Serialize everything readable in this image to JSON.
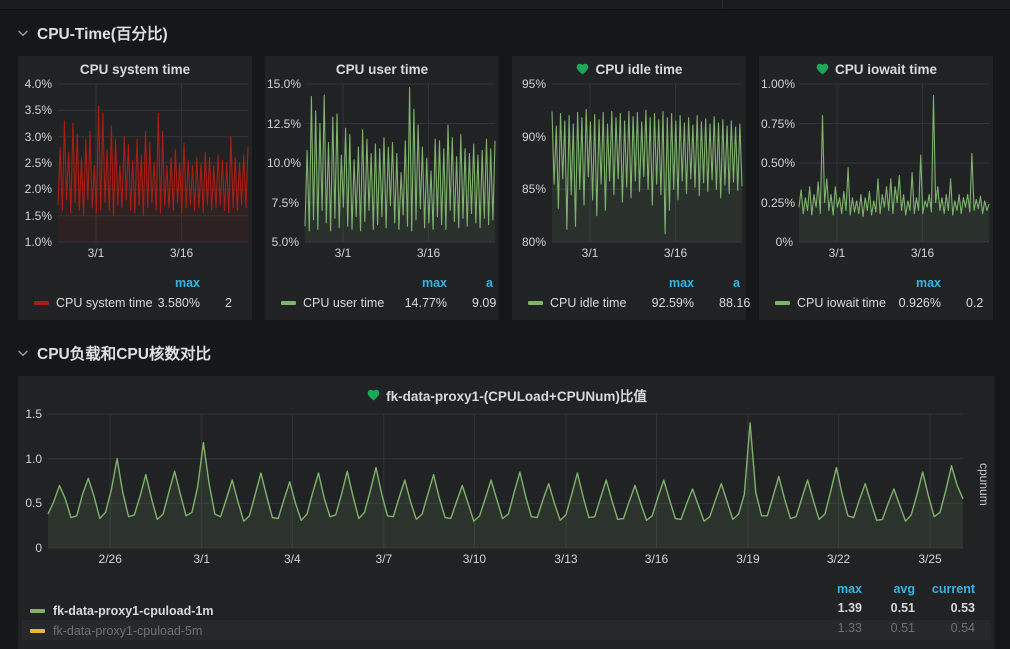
{
  "sections": [
    {
      "title": "CPU-Time(百分比)"
    },
    {
      "title": "CPU负载和CPU核数对比"
    }
  ],
  "colors": {
    "red": "#ab1d12",
    "green": "#7eb26d",
    "yellow": "#eab839",
    "stat_header_blue": "#33b5e5",
    "heart_green": "#18a957"
  },
  "chart_data": [
    {
      "type": "line",
      "title": "CPU system time",
      "heart": false,
      "color": "#ab1d12",
      "fill": "rgba(171,29,18,0.10)",
      "ylim": [
        1.0,
        4.0
      ],
      "yticks": [
        {
          "v": 4.0,
          "label": "4.0%"
        },
        {
          "v": 3.5,
          "label": "3.5%"
        },
        {
          "v": 3.0,
          "label": "3.0%"
        },
        {
          "v": 2.5,
          "label": "2.5%"
        },
        {
          "v": 2.0,
          "label": "2.0%"
        },
        {
          "v": 1.5,
          "label": "1.5%"
        },
        {
          "v": 1.0,
          "label": "1.0%"
        }
      ],
      "xticks": [
        {
          "f": 0.2,
          "label": "3/1"
        },
        {
          "f": 0.65,
          "label": "3/16"
        }
      ],
      "values": [
        1.7,
        2.8,
        1.6,
        3.3,
        1.8,
        2.7,
        1.55,
        3.25,
        1.75,
        3.05,
        1.6,
        2.6,
        1.5,
        2.95,
        1.8,
        3.1,
        1.65,
        2.45,
        1.55,
        3.58,
        1.6,
        3.45,
        1.75,
        2.75,
        1.6,
        3.2,
        1.5,
        2.95,
        1.7,
        2.45,
        1.65,
        3.0,
        1.8,
        2.85,
        1.6,
        2.55,
        1.55,
        2.95,
        1.7,
        2.65,
        1.5,
        3.1,
        1.65,
        2.9,
        1.75,
        2.5,
        1.6,
        3.44,
        1.55,
        3.1,
        1.7,
        2.45,
        1.65,
        2.6,
        1.6,
        2.75,
        1.75,
        2.5,
        1.55,
        2.88,
        1.65,
        2.55,
        1.7,
        2.45,
        1.6,
        2.6,
        1.65,
        2.5,
        1.55,
        2.7,
        1.7,
        2.6,
        1.6,
        2.45,
        1.65,
        2.65,
        1.7,
        2.55,
        1.6,
        2.5,
        1.55,
        3.0,
        1.65,
        2.6,
        1.6,
        2.5,
        1.7,
        2.65,
        1.65,
        2.8
      ],
      "legend": {
        "series": "CPU system time",
        "max_header": "max",
        "max": "3.580%",
        "avg_header_partial": "",
        "avg_partial": "2"
      }
    },
    {
      "type": "line",
      "title": "CPU user time",
      "heart": false,
      "color": "#7eb26d",
      "fill": "rgba(126,178,109,0.10)",
      "ylim": [
        5.0,
        15.0
      ],
      "yticks": [
        {
          "v": 15.0,
          "label": "15.0%"
        },
        {
          "v": 12.5,
          "label": "12.5%"
        },
        {
          "v": 10.0,
          "label": "10.0%"
        },
        {
          "v": 7.5,
          "label": "7.5%"
        },
        {
          "v": 5.0,
          "label": "5.0%"
        }
      ],
      "xticks": [
        {
          "f": 0.2,
          "label": "3/1"
        },
        {
          "f": 0.65,
          "label": "3/16"
        }
      ],
      "values": [
        6.0,
        10.8,
        5.7,
        14.2,
        6.4,
        13.3,
        5.8,
        12.5,
        7.0,
        14.3,
        6.2,
        11.3,
        5.7,
        12.9,
        6.5,
        13.1,
        5.9,
        10.5,
        7.2,
        12.2,
        6.0,
        11.8,
        5.8,
        10.2,
        6.6,
        11.0,
        5.7,
        12.1,
        6.3,
        11.5,
        7.0,
        10.6,
        5.8,
        11.2,
        6.1,
        10.9,
        6.6,
        11.6,
        5.9,
        11.0,
        7.3,
        11.3,
        6.2,
        10.6,
        5.8,
        9.4,
        6.7,
        11.4,
        6.0,
        14.77,
        5.7,
        13.4,
        6.4,
        12.4,
        7.1,
        11.0,
        5.9,
        10.3,
        6.2,
        9.5,
        5.8,
        11.5,
        6.6,
        11.4,
        6.1,
        10.9,
        5.8,
        12.4,
        7.0,
        11.6,
        6.3,
        10.4,
        5.9,
        11.8,
        6.5,
        10.9,
        6.0,
        10.6,
        6.8,
        11.2,
        6.2,
        10.5,
        5.9,
        10.8,
        6.5,
        11.5,
        6.1,
        10.9,
        6.4,
        11.4
      ],
      "legend": {
        "series": "CPU user time",
        "max_header": "max",
        "max": "14.77%",
        "avg_header_partial": "a",
        "avg_partial": "9.09"
      }
    },
    {
      "type": "line",
      "title": "CPU idle time",
      "heart": true,
      "color": "#7eb26d",
      "fill": "rgba(126,178,109,0.10)",
      "ylim": [
        80,
        95
      ],
      "yticks": [
        {
          "v": 95,
          "label": "95%"
        },
        {
          "v": 90,
          "label": "90%"
        },
        {
          "v": 85,
          "label": "85%"
        },
        {
          "v": 80,
          "label": "80%"
        }
      ],
      "xticks": [
        {
          "f": 0.2,
          "label": "3/1"
        },
        {
          "f": 0.65,
          "label": "3/16"
        }
      ],
      "values": [
        92.4,
        85.5,
        91.0,
        83.2,
        92.2,
        86.0,
        91.5,
        81.2,
        92.0,
        84.5,
        91.2,
        81.5,
        92.3,
        85.0,
        91.8,
        83.5,
        92.59,
        86.2,
        91.4,
        84.0,
        92.1,
        82.5,
        91.6,
        85.5,
        92.3,
        83.0,
        91.2,
        85.8,
        92.4,
        84.5,
        91.8,
        86.0,
        92.2,
        83.8,
        91.5,
        85.2,
        92.4,
        84.2,
        91.9,
        85.8,
        92.3,
        84.8,
        91.4,
        86.2,
        92.5,
        85.0,
        91.8,
        83.5,
        92.2,
        85.5,
        91.6,
        84.5,
        92.4,
        80.8,
        91.8,
        83.0,
        92.2,
        85.0,
        91.5,
        84.0,
        92.0,
        85.8,
        91.3,
        84.6,
        91.8,
        86.0,
        91.1,
        85.2,
        92.0,
        84.4,
        91.4,
        85.6,
        91.7,
        84.8,
        91.2,
        85.9,
        91.9,
        85.0,
        91.3,
        84.2,
        91.6,
        85.4,
        91.0,
        84.6,
        91.5,
        85.7,
        90.9,
        84.9,
        91.2,
        85.3
      ],
      "legend": {
        "series": "CPU idle time",
        "max_header": "max",
        "max": "92.59%",
        "avg_header_partial": "a",
        "avg_partial": "88.16"
      }
    },
    {
      "type": "line",
      "title": "CPU iowait time",
      "heart": true,
      "color": "#7eb26d",
      "fill": "rgba(126,178,109,0.10)",
      "ylim": [
        0,
        1.0
      ],
      "yticks": [
        {
          "v": 1.0,
          "label": "1.00%"
        },
        {
          "v": 0.75,
          "label": "0.75%"
        },
        {
          "v": 0.5,
          "label": "0.50%"
        },
        {
          "v": 0.25,
          "label": "0.25%"
        },
        {
          "v": 0,
          "label": "0%"
        }
      ],
      "xticks": [
        {
          "f": 0.2,
          "label": "3/1"
        },
        {
          "f": 0.65,
          "label": "3/16"
        }
      ],
      "values": [
        0.22,
        0.33,
        0.18,
        0.28,
        0.2,
        0.35,
        0.17,
        0.3,
        0.22,
        0.38,
        0.18,
        0.8,
        0.25,
        0.4,
        0.2,
        0.3,
        0.17,
        0.35,
        0.22,
        0.28,
        0.18,
        0.32,
        0.2,
        0.47,
        0.17,
        0.28,
        0.19,
        0.26,
        0.18,
        0.3,
        0.16,
        0.28,
        0.2,
        0.32,
        0.17,
        0.26,
        0.19,
        0.4,
        0.18,
        0.3,
        0.22,
        0.35,
        0.2,
        0.4,
        0.18,
        0.35,
        0.25,
        0.42,
        0.2,
        0.3,
        0.17,
        0.26,
        0.2,
        0.44,
        0.18,
        0.28,
        0.2,
        0.55,
        0.18,
        0.26,
        0.22,
        0.3,
        0.19,
        0.926,
        0.25,
        0.35,
        0.2,
        0.28,
        0.18,
        0.3,
        0.2,
        0.4,
        0.17,
        0.26,
        0.2,
        0.3,
        0.18,
        0.28,
        0.22,
        0.3,
        0.19,
        0.56,
        0.2,
        0.27,
        0.21,
        0.29,
        0.18,
        0.26,
        0.2,
        0.24
      ],
      "legend": {
        "series": "CPU iowait time",
        "max_header": "max",
        "max": "0.926%",
        "avg_header_partial": "",
        "avg_partial": "0.2"
      }
    },
    {
      "type": "line",
      "title": "fk-data-proxy1-(CPULoad+CPUNum)比值",
      "heart": true,
      "color": "#7eb26d",
      "fill": "rgba(126,178,109,0.12)",
      "ylim": [
        0,
        1.5
      ],
      "y2label": "cpunum",
      "yticks": [
        {
          "v": 1.5,
          "label": "1.5"
        },
        {
          "v": 1.0,
          "label": "1.0"
        },
        {
          "v": 0.5,
          "label": "0.5"
        },
        {
          "v": 0,
          "label": "0"
        }
      ],
      "xticks": [
        {
          "f": 0.068,
          "label": "2/26"
        },
        {
          "f": 0.168,
          "label": "3/1"
        },
        {
          "f": 0.267,
          "label": "3/4"
        },
        {
          "f": 0.367,
          "label": "3/7"
        },
        {
          "f": 0.466,
          "label": "3/10"
        },
        {
          "f": 0.566,
          "label": "3/13"
        },
        {
          "f": 0.665,
          "label": "3/16"
        },
        {
          "f": 0.765,
          "label": "3/19"
        },
        {
          "f": 0.864,
          "label": "3/22"
        },
        {
          "f": 0.964,
          "label": "3/25"
        }
      ],
      "values": [
        0.38,
        0.52,
        0.7,
        0.55,
        0.34,
        0.36,
        0.6,
        0.78,
        0.58,
        0.33,
        0.4,
        0.65,
        1.0,
        0.62,
        0.35,
        0.37,
        0.58,
        0.82,
        0.55,
        0.32,
        0.38,
        0.62,
        0.86,
        0.6,
        0.36,
        0.4,
        0.68,
        1.18,
        0.72,
        0.38,
        0.35,
        0.55,
        0.76,
        0.52,
        0.3,
        0.36,
        0.6,
        0.84,
        0.58,
        0.34,
        0.33,
        0.54,
        0.74,
        0.5,
        0.31,
        0.38,
        0.62,
        0.84,
        0.56,
        0.35,
        0.37,
        0.6,
        0.86,
        0.58,
        0.33,
        0.4,
        0.64,
        0.9,
        0.6,
        0.36,
        0.35,
        0.56,
        0.76,
        0.52,
        0.32,
        0.38,
        0.6,
        0.82,
        0.56,
        0.34,
        0.33,
        0.52,
        0.7,
        0.5,
        0.3,
        0.36,
        0.56,
        0.76,
        0.54,
        0.33,
        0.38,
        0.62,
        0.85,
        0.58,
        0.35,
        0.34,
        0.54,
        0.72,
        0.5,
        0.31,
        0.37,
        0.6,
        0.84,
        0.57,
        0.34,
        0.35,
        0.56,
        0.76,
        0.53,
        0.32,
        0.33,
        0.52,
        0.7,
        0.5,
        0.31,
        0.36,
        0.57,
        0.76,
        0.54,
        0.33,
        0.32,
        0.5,
        0.66,
        0.48,
        0.3,
        0.35,
        0.54,
        0.72,
        0.52,
        0.32,
        0.38,
        0.6,
        1.4,
        0.62,
        0.36,
        0.36,
        0.58,
        0.8,
        0.55,
        0.33,
        0.35,
        0.56,
        0.76,
        0.53,
        0.32,
        0.38,
        0.63,
        0.9,
        0.6,
        0.36,
        0.34,
        0.54,
        0.72,
        0.51,
        0.31,
        0.32,
        0.5,
        0.66,
        0.48,
        0.3,
        0.37,
        0.6,
        0.85,
        0.58,
        0.35,
        0.4,
        0.64,
        0.92,
        0.7,
        0.55
      ],
      "legend": {
        "headers": {
          "max": "max",
          "avg": "avg",
          "current": "current"
        },
        "rows": [
          {
            "label": "fk-data-proxy1-cpuload-1m",
            "color": "#7eb26d",
            "max": "1.39",
            "avg": "0.51",
            "current": "0.53",
            "dim": false
          },
          {
            "label": "fk-data-proxy1-cpuload-5m",
            "color": "#eab839",
            "max": "1.33",
            "avg": "0.51",
            "current": "0.54",
            "dim": true
          }
        ]
      }
    }
  ]
}
